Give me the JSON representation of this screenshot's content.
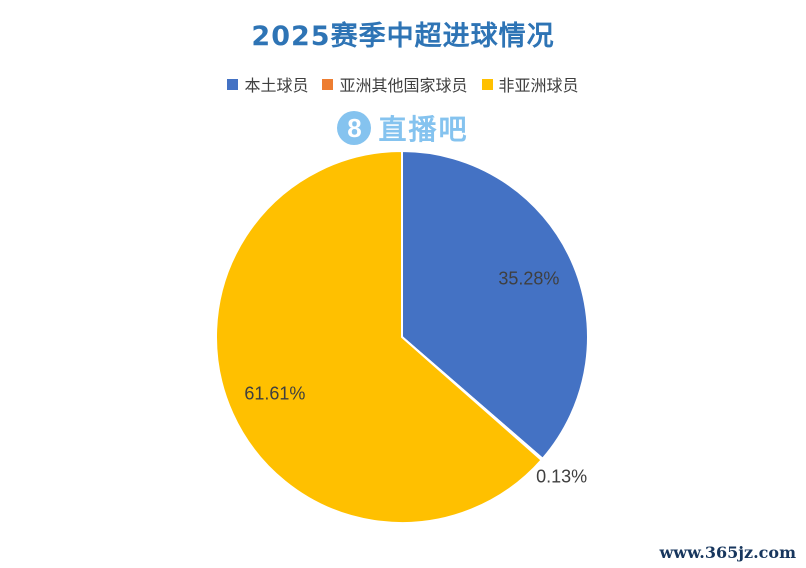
{
  "header": {
    "title": "2025赛季中超进球情况",
    "title_color": "#2E74B5"
  },
  "legend": {
    "position": "top",
    "items": [
      {
        "label": "本土球员",
        "color": "#4472C4"
      },
      {
        "label": "亚洲其他国家球员",
        "color": "#ED7D31"
      },
      {
        "label": "非亚洲球员",
        "color": "#FFC000"
      }
    ]
  },
  "watermark": {
    "badge_text": "8",
    "text": "直播吧",
    "color": "#85C3EF"
  },
  "footer": {
    "site": "www.365jz.com",
    "color": "#17365D"
  },
  "chart_data": {
    "type": "pie",
    "title": "2025赛季中超进球情况",
    "categories": [
      "本土球员",
      "亚洲其他国家球员",
      "非亚洲球员"
    ],
    "values": [
      35.28,
      0.13,
      61.61
    ],
    "labels": [
      "35.28%",
      "0.13%",
      "61.61%"
    ],
    "colors": [
      "#4472C4",
      "#ED7D31",
      "#FFC000"
    ],
    "start_angle_deg": 0,
    "direction": "clockwise",
    "slice_border_color": "#ffffff",
    "legend_position": "top",
    "background": "#ffffff"
  }
}
